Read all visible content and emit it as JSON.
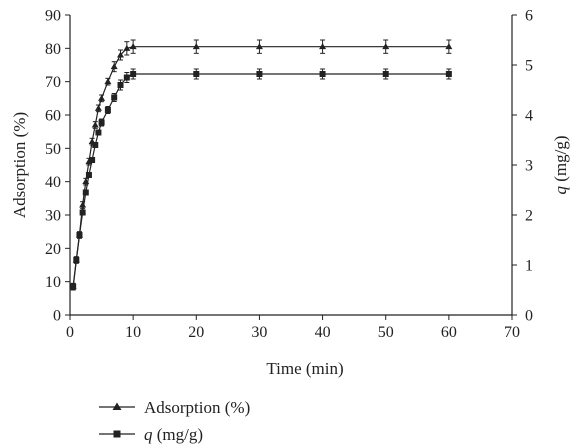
{
  "chart_data": {
    "type": "line",
    "title": "",
    "xlabel": "Time (min)",
    "ylabel_left": "Adsorption (%)",
    "ylabel_right_symbol": "q",
    "ylabel_right_unit": " (mg/g)",
    "xlim": [
      0,
      70
    ],
    "ylim_left": [
      0,
      90
    ],
    "ylim_right": [
      0,
      6
    ],
    "x_ticks": [
      "0",
      "10",
      "20",
      "30",
      "40",
      "50",
      "60",
      "70"
    ],
    "y_left_ticks": [
      "0",
      "10",
      "20",
      "30",
      "40",
      "50",
      "60",
      "70",
      "80",
      "90"
    ],
    "y_right_ticks": [
      "0",
      "1",
      "2",
      "3",
      "4",
      "5",
      "6"
    ],
    "grid": false,
    "legend_position": "bottom-left",
    "series": [
      {
        "name": "Adsorption (%)",
        "marker": "triangle",
        "axis": "left",
        "x": [
          0.5,
          1,
          1.5,
          2,
          2.5,
          3,
          3.5,
          4,
          4.5,
          5,
          6,
          7,
          8,
          9,
          10,
          20,
          30,
          40,
          50,
          60
        ],
        "y": [
          8.5,
          16.5,
          24,
          33,
          40,
          46,
          52,
          57,
          62,
          65,
          70,
          74.5,
          78,
          80,
          80.5,
          80.5,
          80.5,
          80.5,
          80.5,
          80.5
        ],
        "error": [
          1,
          1,
          1,
          1,
          1,
          1,
          1,
          1,
          1,
          1,
          1,
          1.5,
          1.5,
          2,
          2,
          2,
          2,
          2,
          2,
          2
        ]
      },
      {
        "name_symbol": "q",
        "name_unit": " (mg/g)",
        "marker": "square",
        "axis": "right",
        "x": [
          0.5,
          1,
          1.5,
          2,
          2.5,
          3,
          3.5,
          4,
          4.5,
          5,
          6,
          7,
          8,
          9,
          10,
          20,
          30,
          40,
          50,
          60
        ],
        "y": [
          0.57,
          1.1,
          1.6,
          2.05,
          2.45,
          2.8,
          3.1,
          3.4,
          3.65,
          3.85,
          4.1,
          4.35,
          4.6,
          4.75,
          4.82,
          4.82,
          4.82,
          4.82,
          4.82,
          4.82
        ],
        "error": [
          0.05,
          0.05,
          0.05,
          0.05,
          0.05,
          0.05,
          0.05,
          0.05,
          0.05,
          0.07,
          0.07,
          0.08,
          0.1,
          0.1,
          0.1,
          0.1,
          0.1,
          0.1,
          0.1,
          0.1
        ]
      }
    ]
  }
}
